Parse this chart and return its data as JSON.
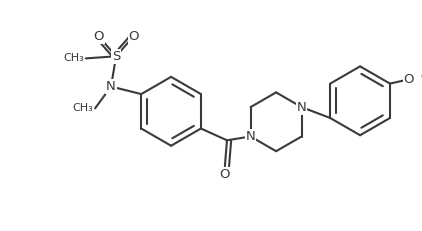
{
  "bg_color": "#ffffff",
  "line_color": "#3a3a3a",
  "line_width": 1.5,
  "font_size": 9.5,
  "fig_width": 4.22,
  "fig_height": 2.31,
  "dpi": 100,
  "xlim": [
    0,
    10
  ],
  "ylim": [
    0,
    5.5
  ]
}
